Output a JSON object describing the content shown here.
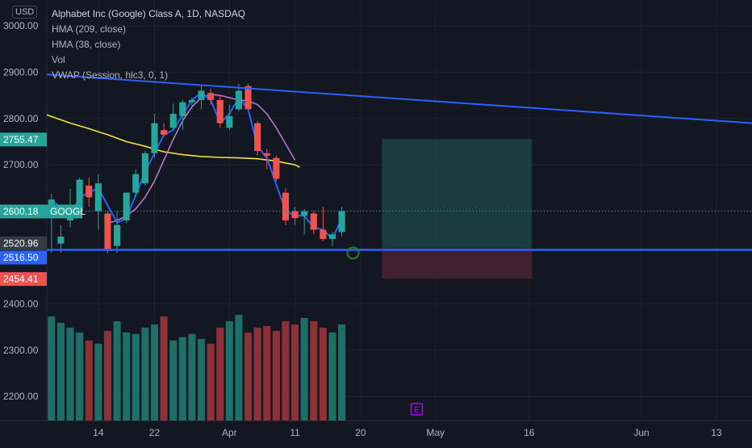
{
  "header": {
    "currency": "USD",
    "title": "Alphabet Inc (Google) Class A, 1D, NASDAQ",
    "indicators": [
      "HMA (209, close)",
      "HMA (38, close)",
      "Vol",
      "VWAP (Session, hlc3, 0, 1)"
    ]
  },
  "colors": {
    "background": "#131722",
    "up": "#26a69a",
    "down": "#ef5350",
    "up_volume": "#1e6f68",
    "down_volume": "#8c3138",
    "hma209": "#f5e23d",
    "hma38": "#b877c6",
    "vwap": "#2962ff",
    "trendline": "#2962ff",
    "target_zone": "#1e4a4a",
    "stop_zone": "#4a2330",
    "earnings_marker": "#b000ff",
    "signal_circle": "#2e7d32"
  },
  "chart_data": {
    "type": "candlestick",
    "symbol": "GOOGL",
    "y_ticks": [
      3000,
      2900,
      2800,
      2700,
      2600,
      2400,
      2300,
      2200
    ],
    "y_tick_labels": [
      "3000.00",
      "2900.00",
      "2800.00",
      "2700.00",
      "2600.00",
      "2400.00",
      "2300.00",
      "2200.00"
    ],
    "ylim": [
      2160,
      3050
    ],
    "x_ticks": [
      {
        "label": "14",
        "index": 5
      },
      {
        "label": "22",
        "index": 11
      },
      {
        "label": "Apr",
        "index": 19
      },
      {
        "label": "11",
        "index": 26
      },
      {
        "label": "20",
        "index": 33
      },
      {
        "label": "May",
        "index": 41
      },
      {
        "label": "16",
        "index": 51
      },
      {
        "label": "Jun",
        "index": 63
      },
      {
        "label": "13",
        "index": 71
      }
    ],
    "xlim": [
      -0.5,
      74.8
    ],
    "candles": [
      {
        "o": 2585,
        "h": 2638,
        "l": 2510,
        "c": 2625
      },
      {
        "o": 2530,
        "h": 2570,
        "l": 2510,
        "c": 2545
      },
      {
        "o": 2580,
        "h": 2648,
        "l": 2565,
        "c": 2595
      },
      {
        "o": 2600,
        "h": 2672,
        "l": 2590,
        "c": 2668
      },
      {
        "o": 2655,
        "h": 2672,
        "l": 2610,
        "c": 2630
      },
      {
        "o": 2600,
        "h": 2680,
        "l": 2560,
        "c": 2660
      },
      {
        "o": 2595,
        "h": 2600,
        "l": 2510,
        "c": 2515
      },
      {
        "o": 2525,
        "h": 2600,
        "l": 2510,
        "c": 2570
      },
      {
        "o": 2580,
        "h": 2640,
        "l": 2575,
        "c": 2640
      },
      {
        "o": 2640,
        "h": 2690,
        "l": 2630,
        "c": 2680
      },
      {
        "o": 2660,
        "h": 2730,
        "l": 2655,
        "c": 2725
      },
      {
        "o": 2725,
        "h": 2810,
        "l": 2715,
        "c": 2790
      },
      {
        "o": 2775,
        "h": 2790,
        "l": 2760,
        "c": 2765
      },
      {
        "o": 2780,
        "h": 2832,
        "l": 2775,
        "c": 2810
      },
      {
        "o": 2805,
        "h": 2840,
        "l": 2775,
        "c": 2835
      },
      {
        "o": 2835,
        "h": 2845,
        "l": 2820,
        "c": 2840
      },
      {
        "o": 2840,
        "h": 2870,
        "l": 2820,
        "c": 2860
      },
      {
        "o": 2855,
        "h": 2865,
        "l": 2830,
        "c": 2840
      },
      {
        "o": 2840,
        "h": 2850,
        "l": 2780,
        "c": 2790
      },
      {
        "o": 2780,
        "h": 2830,
        "l": 2775,
        "c": 2805
      },
      {
        "o": 2820,
        "h": 2875,
        "l": 2815,
        "c": 2860
      },
      {
        "o": 2870,
        "h": 2875,
        "l": 2820,
        "c": 2820
      },
      {
        "o": 2790,
        "h": 2795,
        "l": 2720,
        "c": 2730
      },
      {
        "o": 2725,
        "h": 2735,
        "l": 2690,
        "c": 2720
      },
      {
        "o": 2715,
        "h": 2720,
        "l": 2665,
        "c": 2670
      },
      {
        "o": 2640,
        "h": 2650,
        "l": 2570,
        "c": 2580
      },
      {
        "o": 2600,
        "h": 2610,
        "l": 2570,
        "c": 2585
      },
      {
        "o": 2590,
        "h": 2605,
        "l": 2550,
        "c": 2600
      },
      {
        "o": 2595,
        "h": 2600,
        "l": 2550,
        "c": 2560
      },
      {
        "o": 2560,
        "h": 2610,
        "l": 2535,
        "c": 2540
      },
      {
        "o": 2540,
        "h": 2555,
        "l": 2525,
        "c": 2550
      },
      {
        "o": 2555,
        "h": 2610,
        "l": 2545,
        "c": 2600
      }
    ],
    "volumes": [
      65,
      61,
      58,
      55,
      50,
      48,
      56,
      62,
      55,
      54,
      58,
      60,
      65,
      50,
      52,
      54,
      51,
      48,
      58,
      62,
      66,
      55,
      58,
      59,
      56,
      62,
      60,
      64,
      62,
      58,
      55,
      60
    ],
    "hma38": [
      {
        "i": 6.2,
        "v": 2575
      },
      {
        "i": 7,
        "v": 2580
      },
      {
        "i": 8,
        "v": 2590
      },
      {
        "i": 9,
        "v": 2605
      },
      {
        "i": 10,
        "v": 2630
      },
      {
        "i": 11,
        "v": 2665
      },
      {
        "i": 12,
        "v": 2710
      },
      {
        "i": 13,
        "v": 2755
      },
      {
        "i": 14,
        "v": 2795
      },
      {
        "i": 15,
        "v": 2825
      },
      {
        "i": 16,
        "v": 2845
      },
      {
        "i": 17,
        "v": 2852
      },
      {
        "i": 18,
        "v": 2850
      },
      {
        "i": 19,
        "v": 2845
      },
      {
        "i": 20,
        "v": 2840
      },
      {
        "i": 21,
        "v": 2838
      },
      {
        "i": 22,
        "v": 2830
      },
      {
        "i": 23,
        "v": 2810
      },
      {
        "i": 24,
        "v": 2780
      },
      {
        "i": 25,
        "v": 2745
      },
      {
        "i": 26,
        "v": 2710
      }
    ],
    "hma209": [
      {
        "i": -0.5,
        "v": 2808
      },
      {
        "i": 2,
        "v": 2790
      },
      {
        "i": 4,
        "v": 2778
      },
      {
        "i": 6,
        "v": 2765
      },
      {
        "i": 8,
        "v": 2750
      },
      {
        "i": 10,
        "v": 2740
      },
      {
        "i": 12,
        "v": 2728
      },
      {
        "i": 14,
        "v": 2722
      },
      {
        "i": 16,
        "v": 2718
      },
      {
        "i": 18,
        "v": 2716
      },
      {
        "i": 20,
        "v": 2715
      },
      {
        "i": 22,
        "v": 2713
      },
      {
        "i": 24,
        "v": 2708
      },
      {
        "i": 26,
        "v": 2700
      },
      {
        "i": 26.5,
        "v": 2695
      }
    ],
    "vwap": [
      {
        "i": 0,
        "v": 2625
      },
      {
        "i": 2,
        "v": 2590
      },
      {
        "i": 3,
        "v": 2630
      },
      {
        "i": 5,
        "v": 2650
      },
      {
        "i": 7,
        "v": 2575
      },
      {
        "i": 8,
        "v": 2585
      },
      {
        "i": 10,
        "v": 2685
      },
      {
        "i": 12,
        "v": 2765
      },
      {
        "i": 13,
        "v": 2775
      },
      {
        "i": 15,
        "v": 2840
      },
      {
        "i": 16,
        "v": 2855
      },
      {
        "i": 17,
        "v": 2840
      },
      {
        "i": 18,
        "v": 2790
      },
      {
        "i": 19,
        "v": 2810
      },
      {
        "i": 20,
        "v": 2845
      },
      {
        "i": 21,
        "v": 2820
      },
      {
        "i": 22,
        "v": 2740
      },
      {
        "i": 23,
        "v": 2715
      },
      {
        "i": 25,
        "v": 2600
      },
      {
        "i": 26,
        "v": 2590
      },
      {
        "i": 27,
        "v": 2590
      },
      {
        "i": 28,
        "v": 2565
      },
      {
        "i": 29,
        "v": 2560
      },
      {
        "i": 30,
        "v": 2540
      },
      {
        "i": 31,
        "v": 2585
      }
    ],
    "trendline_top": {
      "from": {
        "i": -0.5,
        "v": 2895
      },
      "to": {
        "i": 74.8,
        "v": 2790
      }
    },
    "support_line": {
      "v": 2516.5
    },
    "position": {
      "start_i": 35.3,
      "end_i": 51.3,
      "target": 2755.47,
      "entry": 2520.96,
      "stop": 2454.41
    },
    "signal_circle": {
      "i": 32.2,
      "v": 2515
    },
    "earnings_marker": {
      "i": 39,
      "label": "E"
    },
    "price_labels": [
      {
        "v": 2755.47,
        "text": "2755.47",
        "color": "#26a69a"
      },
      {
        "v": 2600.18,
        "text": "2600.18",
        "color": "#26a69a",
        "tag": "GOOGL"
      },
      {
        "v": 2520.96,
        "text": "2520.96",
        "color": "#363a45"
      },
      {
        "v": 2516.5,
        "text": "2516.50",
        "color": "#2962ff"
      },
      {
        "v": 2454.41,
        "text": "2454.41",
        "color": "#ef5350"
      }
    ]
  }
}
